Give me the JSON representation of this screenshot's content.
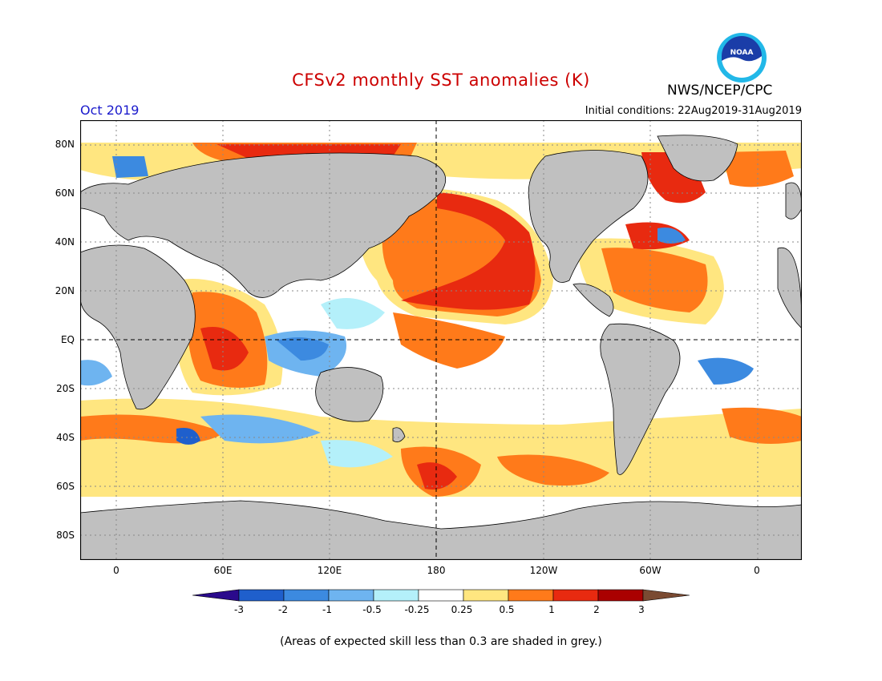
{
  "header": {
    "title": "CFSv2 monthly SST anomalies (K)",
    "month": "Oct 2019",
    "initial_conditions": "Initial conditions: 22Aug2019-31Aug2019",
    "agency": "NWS/NCEP/CPC",
    "logo_text": "NOAA"
  },
  "map": {
    "lat_labels": [
      "80N",
      "60N",
      "40N",
      "20N",
      "EQ",
      "20S",
      "40S",
      "60S",
      "80S"
    ],
    "lon_labels": [
      "0",
      "60E",
      "120E",
      "180",
      "120W",
      "60W",
      "0"
    ],
    "colors": {
      "land": "#c0c0c0",
      "grid": "#888888"
    }
  },
  "colorbar": {
    "labels": [
      "-3",
      "-2",
      "-1",
      "-0.5",
      "-0.25",
      "0.25",
      "0.5",
      "1",
      "2",
      "3"
    ],
    "colors": [
      "#2a0a8c",
      "#1f5fcc",
      "#3c8ae0",
      "#6eb4f0",
      "#b4f0fa",
      "#ffffff",
      "#ffe680",
      "#ff7a1a",
      "#e82a10",
      "#aa0000",
      "#7a4a32"
    ]
  },
  "footnote": "(Areas of expected skill less than 0.3 are shaded in grey.)"
}
